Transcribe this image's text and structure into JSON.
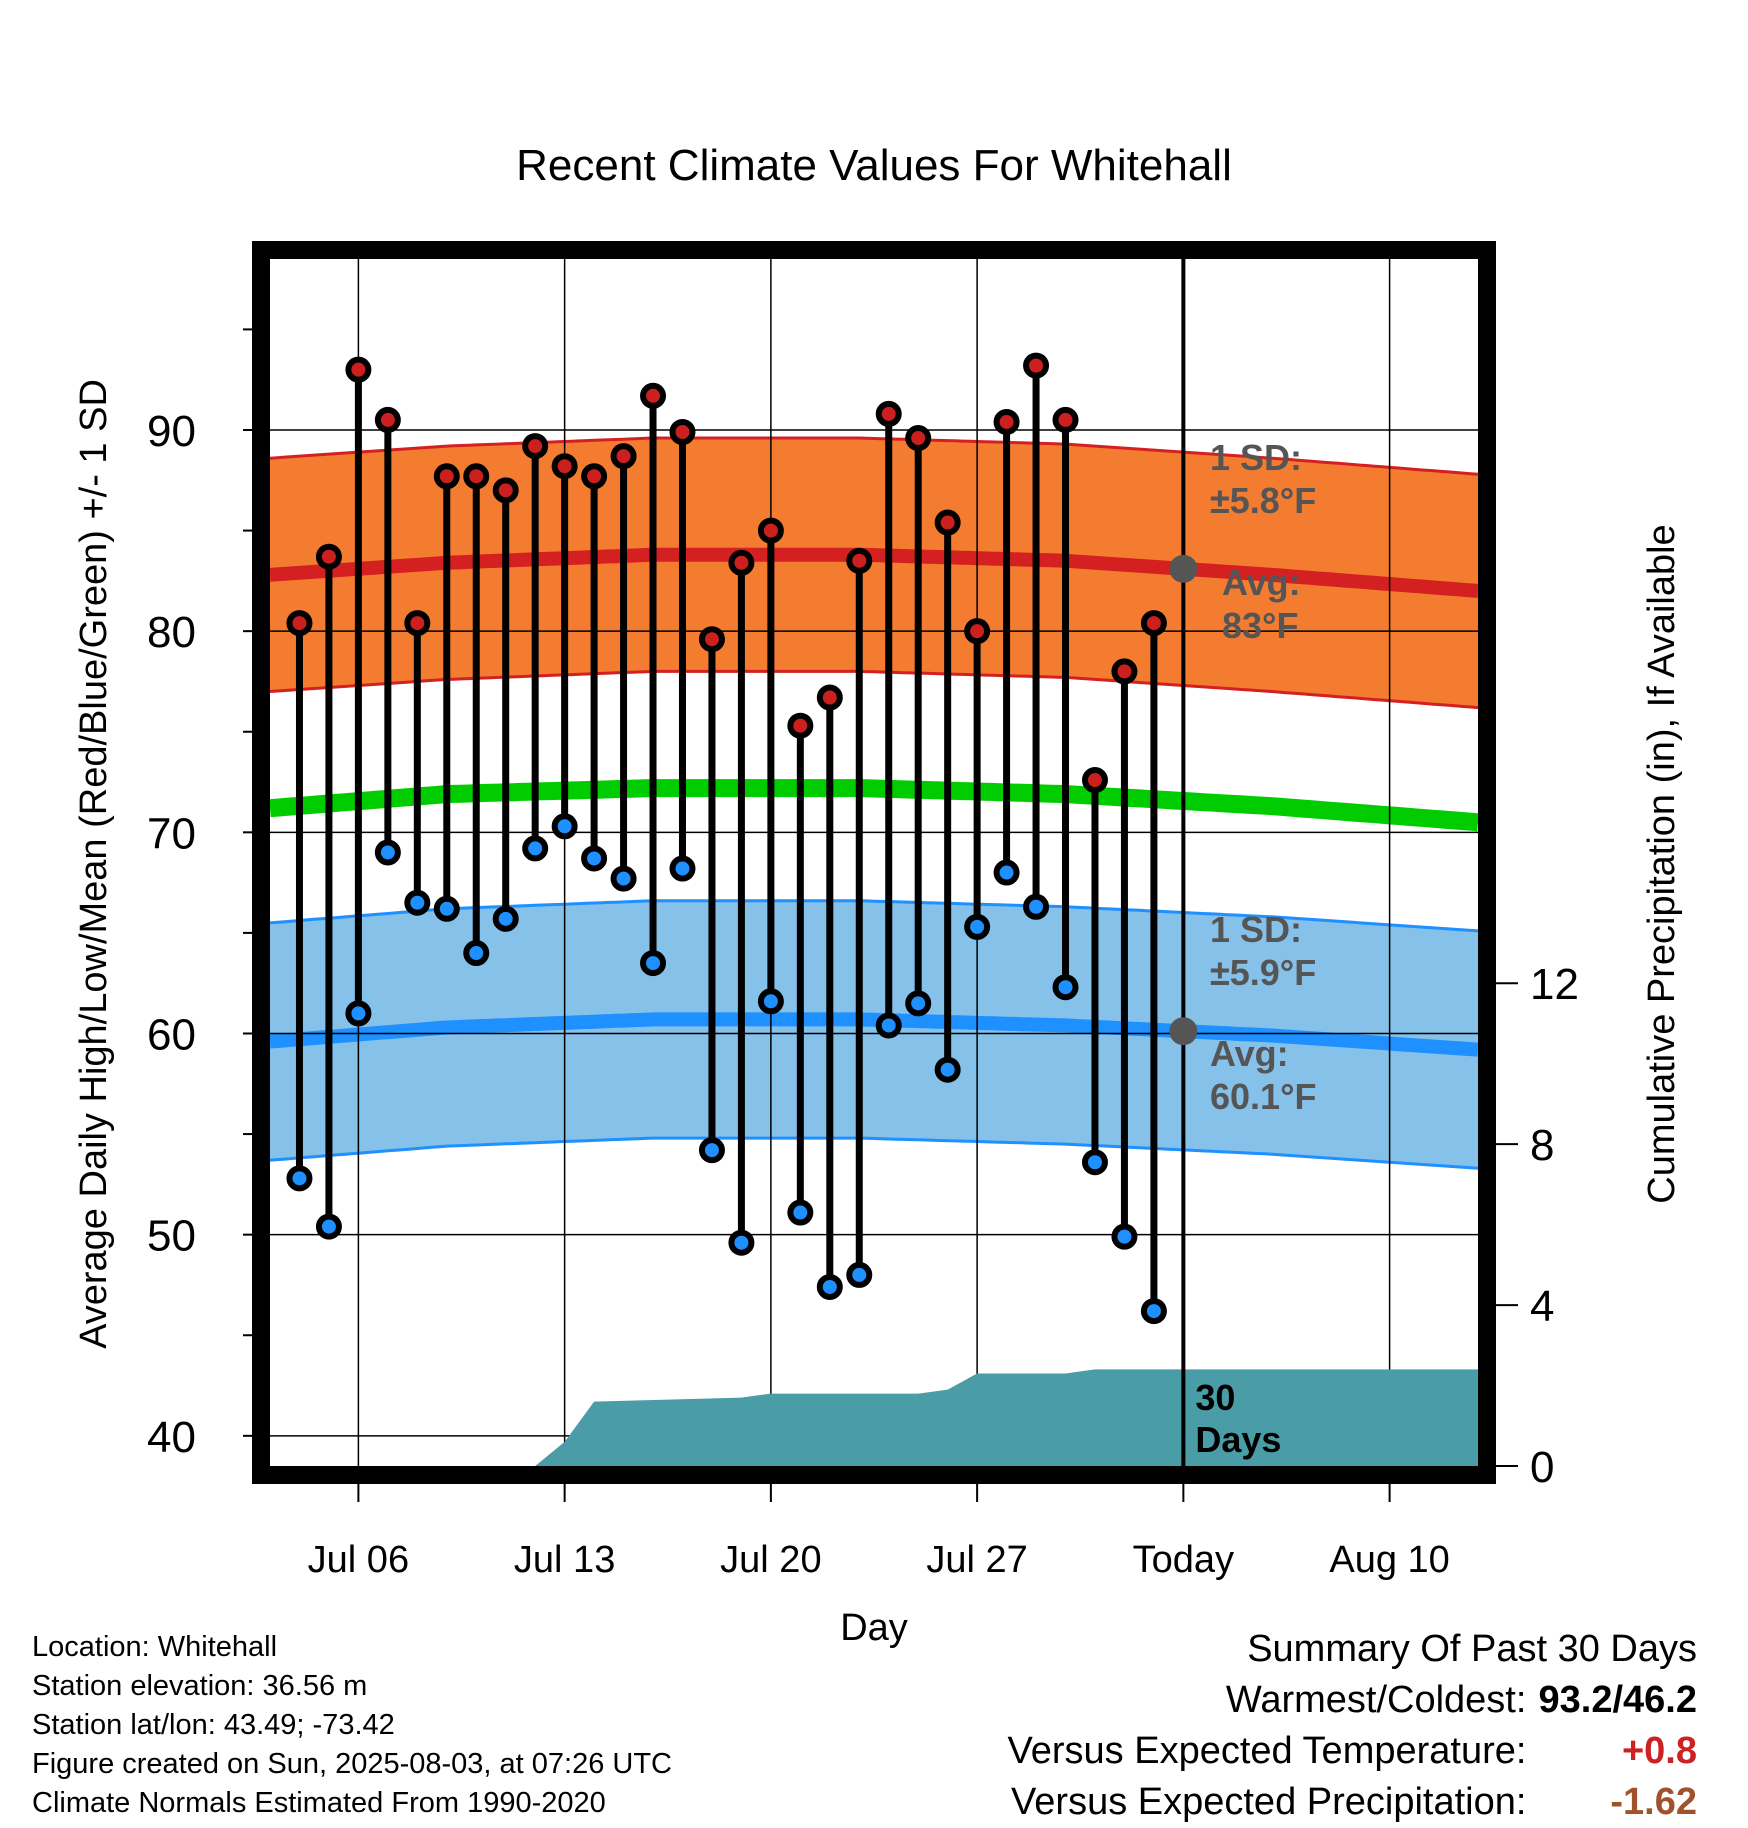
{
  "chart_data": {
    "type": "line",
    "title": "Recent Climate Values For Whitehall",
    "xlabel": "Day",
    "ylabel": "Average Daily High/Low/Mean (Red/Blue/Green) +/- 1 SD",
    "y2label": "Cumulative Precipitation (in), If Available",
    "ylim": [
      38.5,
      98.5
    ],
    "y_ticks": [
      40,
      50,
      60,
      70,
      80,
      90
    ],
    "y2lim": [
      0,
      30
    ],
    "y2_ticks": [
      0,
      4,
      8,
      12
    ],
    "x_day_range": [
      1,
      42
    ],
    "x_ticks": [
      {
        "day": 4,
        "label": "Jul 06"
      },
      {
        "day": 11,
        "label": "Jul 13"
      },
      {
        "day": 18,
        "label": "Jul 20"
      },
      {
        "day": 25,
        "label": "Jul 27"
      },
      {
        "day": 32,
        "label": "Today"
      },
      {
        "day": 39,
        "label": "Aug 10"
      }
    ],
    "grid": true,
    "series": [
      {
        "name": "High",
        "color": "#cc1f1f",
        "days": [
          2,
          3,
          4,
          5,
          6,
          7,
          8,
          9,
          10,
          11,
          12,
          13,
          14,
          15,
          16,
          17,
          18,
          19,
          20,
          21,
          22,
          23,
          24,
          25,
          26,
          27,
          28,
          29,
          30,
          31
        ],
        "values": [
          80.4,
          83.7,
          93.0,
          90.5,
          80.4,
          87.7,
          87.7,
          87.0,
          89.2,
          88.2,
          87.7,
          88.7,
          91.7,
          89.9,
          79.6,
          83.4,
          85.0,
          75.3,
          76.7,
          83.5,
          90.8,
          89.6,
          85.4,
          80.0,
          90.4,
          93.2,
          90.5,
          72.6,
          78.0,
          80.4
        ]
      },
      {
        "name": "Low",
        "color": "#1e90ff",
        "days": [
          2,
          3,
          4,
          5,
          6,
          7,
          8,
          9,
          10,
          11,
          12,
          13,
          14,
          15,
          16,
          17,
          18,
          19,
          20,
          21,
          22,
          23,
          24,
          25,
          26,
          27,
          28,
          29,
          30,
          31
        ],
        "values": [
          52.8,
          50.4,
          61.0,
          69.0,
          66.5,
          66.2,
          64.0,
          65.7,
          69.2,
          70.3,
          68.7,
          67.7,
          63.5,
          68.2,
          54.2,
          49.6,
          61.6,
          51.1,
          47.4,
          48.0,
          60.4,
          61.5,
          58.2,
          65.3,
          68.0,
          66.3,
          62.3,
          53.6,
          49.9,
          46.2
        ]
      }
    ],
    "normals": {
      "high_avg": {
        "days": [
          1,
          7,
          14,
          21,
          28,
          35,
          42
        ],
        "values": [
          82.8,
          83.4,
          83.8,
          83.8,
          83.5,
          82.8,
          82.0
        ]
      },
      "high_sd_f": 5.8,
      "low_avg": {
        "days": [
          1,
          7,
          14,
          21,
          28,
          35,
          42
        ],
        "values": [
          59.6,
          60.3,
          60.7,
          60.7,
          60.4,
          59.9,
          59.2
        ]
      },
      "low_sd_f": 5.9,
      "mean_avg": {
        "days": [
          1,
          7,
          14,
          21,
          28,
          35,
          42
        ],
        "values": [
          71.2,
          71.9,
          72.2,
          72.2,
          71.9,
          71.3,
          70.5
        ]
      }
    },
    "precip_cumulative": {
      "color": "#4a9ca6",
      "days": [
        1,
        10,
        11,
        12,
        17,
        18,
        23,
        24,
        25,
        28,
        29,
        42
      ],
      "values": [
        0,
        0,
        0.6,
        1.6,
        1.7,
        1.8,
        1.8,
        1.9,
        2.3,
        2.3,
        2.4,
        2.4
      ]
    },
    "today_marker": {
      "day": 32,
      "label": "30\nDays"
    },
    "annotations": {
      "high_sd": "1 SD:\n±5.8°F",
      "high_avg": "Avg:\n83°F",
      "low_sd": "1 SD:\n±5.9°F",
      "low_avg": "Avg:\n60.1°F"
    }
  },
  "info": {
    "location": "Location: Whitehall",
    "elevation": "Station elevation: 36.56 m",
    "latlon": "Station lat/lon: 43.49; -73.42",
    "created": "Figure created on Sun, 2025-08-03, at 07:26 UTC",
    "normals": "Climate Normals Estimated From 1990-2020"
  },
  "summary": {
    "heading": "Summary Of Past 30 Days",
    "warm_cold_label": "Warmest/Coldest:",
    "warm_cold_value": "93.2/46.2",
    "temp_label": "Versus Expected Temperature:",
    "temp_value": "+0.8",
    "temp_color": "#cc2222",
    "precip_label": "Versus Expected Precipitation:",
    "precip_value": "-1.62",
    "precip_color": "#a0522d"
  },
  "colors": {
    "high_band": "#f47c30",
    "high_line": "#d42020",
    "low_band": "#85c1e8",
    "low_line": "#1e90ff",
    "mean_line": "#00cc00",
    "precip": "#4a9ca6",
    "annotation": "#555555"
  }
}
